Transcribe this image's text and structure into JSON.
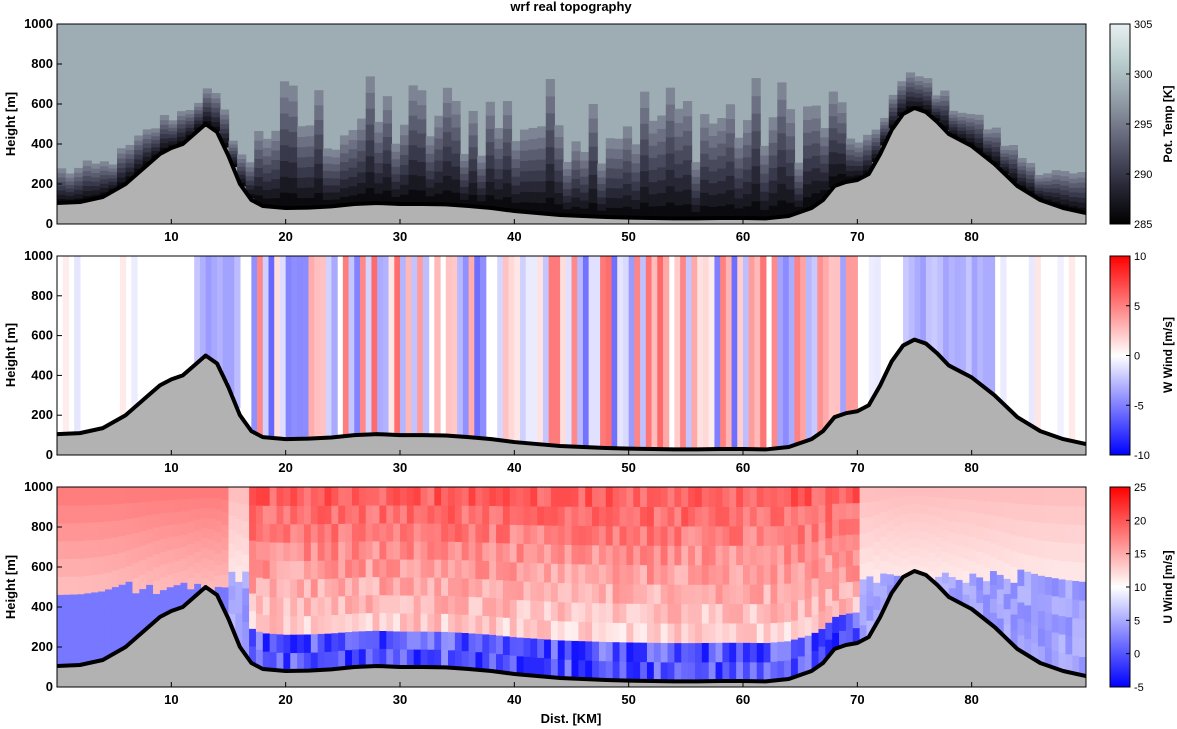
{
  "figure": {
    "title": "wrf real topography",
    "xlabel": "Dist. [KM]"
  },
  "chart_data": [
    {
      "type": "heatmap",
      "field": "potential_temperature",
      "ylabel": "Height [m]",
      "colorbar_label": "Pot. Temp [K]",
      "colorbar_ticks": [
        285,
        290,
        295,
        300,
        305
      ],
      "colorbar_range": [
        285,
        305
      ],
      "colormap": [
        "#000000",
        "#2a2a3a",
        "#5c5e72",
        "#8e98a4",
        "#b8cccc",
        "#e8f0f0"
      ],
      "xlim": [
        0,
        90
      ],
      "ylim": [
        0,
        1000
      ],
      "xticks": [
        10,
        20,
        30,
        40,
        50,
        60,
        70,
        80
      ],
      "yticks": [
        0,
        200,
        400,
        600,
        800,
        1000
      ],
      "background_value": 298.5
    },
    {
      "type": "heatmap",
      "field": "vertical_wind",
      "ylabel": "Height [m]",
      "colorbar_label": "W Wind [m/s]",
      "colorbar_ticks": [
        -10,
        -5,
        0,
        5,
        10
      ],
      "colorbar_range": [
        -10,
        10
      ],
      "colormap": [
        "#0000ff",
        "#ffffff",
        "#ff0000"
      ],
      "xlim": [
        0,
        90
      ],
      "ylim": [
        0,
        1000
      ],
      "xticks": [
        10,
        20,
        30,
        40,
        50,
        60,
        70,
        80
      ],
      "yticks": [
        0,
        200,
        400,
        600,
        800,
        1000
      ],
      "background_value": 0
    },
    {
      "type": "heatmap",
      "field": "horizontal_wind",
      "ylabel": "Height [m]",
      "colorbar_label": "U Wind [m/s]",
      "colorbar_ticks": [
        -5,
        0,
        5,
        10,
        15,
        20,
        25
      ],
      "colorbar_range": [
        -5,
        25
      ],
      "colormap": [
        "#0000ff",
        "#ffffff",
        "#ff0000"
      ],
      "xlim": [
        0,
        90
      ],
      "ylim": [
        0,
        1000
      ],
      "xticks": [
        10,
        20,
        30,
        40,
        50,
        60,
        70,
        80
      ],
      "yticks": [
        0,
        200,
        400,
        600,
        800,
        1000
      ],
      "background_value": 17
    }
  ],
  "terrain": {
    "x": [
      0,
      2,
      4,
      6,
      8,
      9,
      10,
      11,
      12,
      13,
      14,
      15,
      16,
      17,
      18,
      20,
      22,
      24,
      26,
      28,
      30,
      32,
      34,
      36,
      38,
      40,
      42,
      44,
      46,
      48,
      50,
      52,
      54,
      56,
      58,
      60,
      62,
      64,
      66,
      67,
      68,
      69,
      70,
      71,
      72,
      73,
      74,
      75,
      76,
      77,
      78,
      79,
      80,
      82,
      84,
      86,
      88,
      90
    ],
    "height": [
      105,
      110,
      135,
      200,
      300,
      350,
      380,
      400,
      450,
      500,
      460,
      340,
      200,
      120,
      90,
      80,
      82,
      88,
      100,
      105,
      100,
      100,
      98,
      90,
      80,
      65,
      55,
      45,
      40,
      35,
      32,
      30,
      28,
      28,
      30,
      30,
      28,
      40,
      80,
      120,
      190,
      210,
      220,
      250,
      350,
      470,
      550,
      580,
      560,
      510,
      450,
      420,
      390,
      300,
      190,
      120,
      80,
      55
    ]
  }
}
